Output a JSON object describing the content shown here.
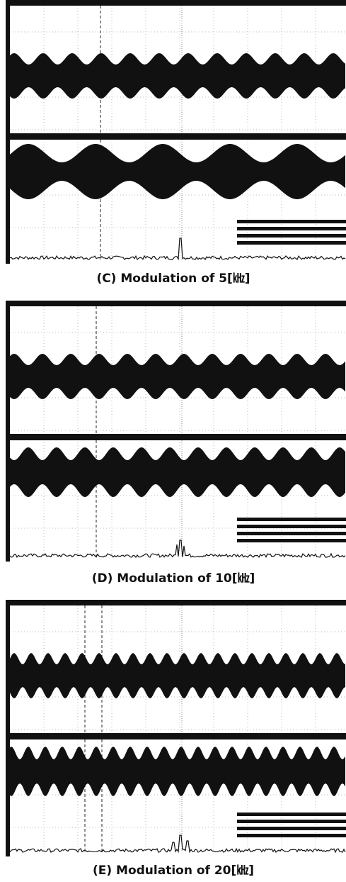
{
  "figures": [
    {
      "caption": "(C) Modulation of 5[㎑]"
    },
    {
      "caption": "(D) Modulation of 10[㎑]"
    },
    {
      "caption": "(E) Modulation of 20[㎑]"
    }
  ]
}
